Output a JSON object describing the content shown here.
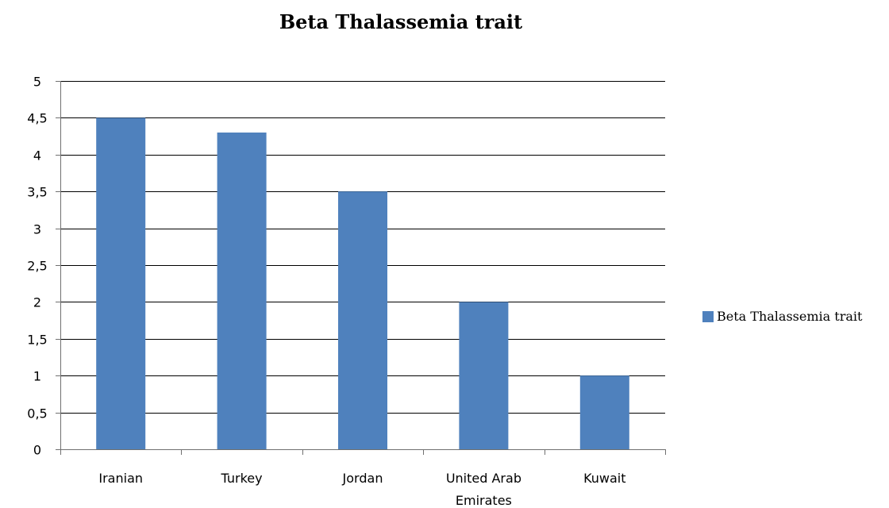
{
  "chart_data": {
    "type": "bar",
    "title": "Beta Thalassemia trait",
    "categories": [
      "Iranian",
      "Turkey",
      "Jordan",
      "United Arab Emirates",
      "Kuwait"
    ],
    "category_lines": [
      [
        "Iranian"
      ],
      [
        "Turkey"
      ],
      [
        "Jordan"
      ],
      [
        "United Arab",
        "Emirates"
      ],
      [
        "Kuwait"
      ]
    ],
    "series": [
      {
        "name": "Beta Thalassemia trait",
        "values": [
          4.5,
          4.3,
          3.5,
          2.0,
          1.0
        ]
      }
    ],
    "y_ticks": [
      0,
      0.5,
      1,
      1.5,
      2,
      2.5,
      3,
      3.5,
      4,
      4.5,
      5
    ],
    "y_tick_labels": [
      "0",
      "0,5",
      "1",
      "1,5",
      "2",
      "2,5",
      "3",
      "3,5",
      "4",
      "4,5",
      "5"
    ],
    "ylim": [
      0,
      5
    ],
    "xlabel": "",
    "ylabel": "",
    "grid": true,
    "legend_position": "right",
    "colors": {
      "bar": "#4f81bd",
      "grid": "#000000"
    }
  }
}
